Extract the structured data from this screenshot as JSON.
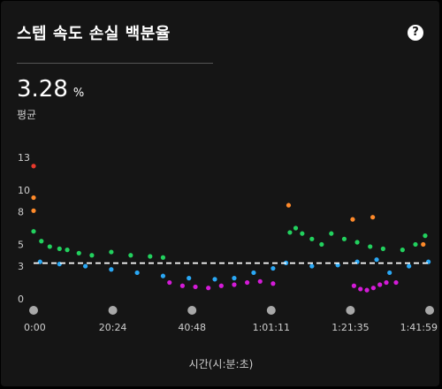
{
  "header": {
    "title": "스텝 속도 손실 백분율",
    "help_icon": "question-circle-icon"
  },
  "metric": {
    "value": "3.28",
    "unit": "%",
    "label": "평균"
  },
  "colors": {
    "background": "#151515",
    "zone_red": "#e8392c",
    "zone_orange": "#ff8a2a",
    "zone_green": "#22d15e",
    "zone_blue": "#2aa8f5",
    "zone_magenta": "#d41bd8",
    "average_line": "#ffffff"
  },
  "chart_data": {
    "type": "scatter",
    "x_axis": {
      "title": "시간(시:분:초)",
      "tick_labels": [
        "0:00",
        "20:24",
        "40:48",
        "1:01:11",
        "1:21:35",
        "1:41:59"
      ],
      "range_seconds": [
        0,
        6119
      ]
    },
    "y_axis": {
      "tick_values": [
        0,
        3,
        5,
        8,
        10,
        13
      ],
      "ylim": [
        0,
        13
      ]
    },
    "average": 3.28,
    "series": [
      {
        "zone": "red",
        "points": [
          [
            0,
            12.2
          ]
        ]
      },
      {
        "zone": "orange",
        "points": [
          [
            0,
            9.3
          ],
          [
            0,
            8.1
          ],
          [
            3940,
            8.6
          ],
          [
            4930,
            7.3
          ],
          [
            5240,
            7.5
          ],
          [
            6020,
            5.0
          ]
        ]
      },
      {
        "zone": "green",
        "points": [
          [
            0,
            6.2
          ],
          [
            120,
            5.3
          ],
          [
            250,
            4.8
          ],
          [
            400,
            4.6
          ],
          [
            520,
            4.5
          ],
          [
            700,
            4.2
          ],
          [
            900,
            4.0
          ],
          [
            1200,
            4.3
          ],
          [
            1500,
            4.0
          ],
          [
            1800,
            3.9
          ],
          [
            2000,
            3.8
          ],
          [
            3960,
            6.1
          ],
          [
            4050,
            6.5
          ],
          [
            4150,
            6.0
          ],
          [
            4300,
            5.5
          ],
          [
            4450,
            5.0
          ],
          [
            4600,
            6.0
          ],
          [
            4800,
            5.5
          ],
          [
            5000,
            5.2
          ],
          [
            5200,
            4.8
          ],
          [
            5400,
            4.6
          ],
          [
            5700,
            4.5
          ],
          [
            5900,
            5.0
          ],
          [
            6050,
            5.8
          ]
        ]
      },
      {
        "zone": "blue",
        "points": [
          [
            100,
            3.4
          ],
          [
            400,
            3.2
          ],
          [
            800,
            3.0
          ],
          [
            1200,
            2.7
          ],
          [
            1600,
            2.4
          ],
          [
            2000,
            2.1
          ],
          [
            2400,
            1.9
          ],
          [
            2800,
            1.8
          ],
          [
            3100,
            1.9
          ],
          [
            3400,
            2.4
          ],
          [
            3700,
            2.8
          ],
          [
            3900,
            3.3
          ],
          [
            4300,
            3.0
          ],
          [
            4700,
            3.1
          ],
          [
            5000,
            3.4
          ],
          [
            5300,
            3.6
          ],
          [
            5500,
            2.4
          ],
          [
            5800,
            3.0
          ],
          [
            6100,
            3.4
          ]
        ]
      },
      {
        "zone": "magenta",
        "points": [
          [
            2100,
            1.5
          ],
          [
            2300,
            1.2
          ],
          [
            2500,
            1.1
          ],
          [
            2700,
            1.0
          ],
          [
            2900,
            1.2
          ],
          [
            3100,
            1.3
          ],
          [
            3300,
            1.5
          ],
          [
            3500,
            1.6
          ],
          [
            3700,
            1.4
          ],
          [
            4950,
            1.2
          ],
          [
            5050,
            0.9
          ],
          [
            5150,
            0.8
          ],
          [
            5250,
            1.0
          ],
          [
            5350,
            1.3
          ],
          [
            5450,
            1.5
          ],
          [
            5600,
            1.5
          ]
        ]
      }
    ]
  }
}
